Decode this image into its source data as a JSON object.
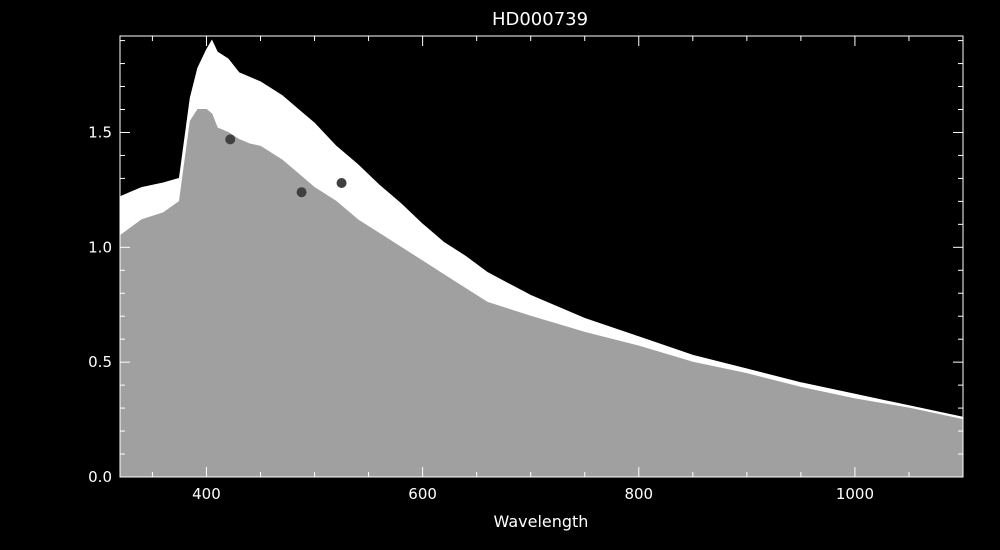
{
  "chart_data": {
    "type": "line",
    "title": "HD000739",
    "xlabel": "Wavelength",
    "ylabel": "",
    "xlim": [
      320,
      1100
    ],
    "ylim": [
      0,
      1.92
    ],
    "x_ticks": [
      400,
      600,
      800,
      1000
    ],
    "y_ticks": [
      0.0,
      0.5,
      1.0,
      1.5
    ],
    "x_tick_labels": [
      "400",
      "600",
      "800",
      "1000"
    ],
    "y_tick_labels": [
      "0.0",
      "0.5",
      "1.0",
      "1.5"
    ],
    "grid": false,
    "background": "#000000",
    "foreground": "#ffffff",
    "series": [
      {
        "color": "#ffffff",
        "x": [
          320,
          340,
          360,
          375,
          385,
          392,
          400,
          405,
          410,
          420,
          430,
          440,
          450,
          470,
          490,
          500,
          520,
          540,
          560,
          580,
          600,
          620,
          640,
          660,
          680,
          700,
          750,
          800,
          850,
          900,
          950,
          1000,
          1050,
          1100
        ],
        "y": [
          1.22,
          1.26,
          1.28,
          1.3,
          1.65,
          1.78,
          1.86,
          1.9,
          1.85,
          1.82,
          1.76,
          1.74,
          1.72,
          1.66,
          1.58,
          1.54,
          1.44,
          1.36,
          1.27,
          1.19,
          1.1,
          1.02,
          0.96,
          0.89,
          0.84,
          0.79,
          0.69,
          0.61,
          0.53,
          0.47,
          0.41,
          0.36,
          0.31,
          0.26
        ]
      },
      {
        "color": "#a0a0a0",
        "x": [
          320,
          340,
          360,
          375,
          385,
          392,
          400,
          405,
          410,
          420,
          430,
          440,
          450,
          470,
          490,
          500,
          520,
          540,
          560,
          580,
          600,
          620,
          640,
          660,
          680,
          700,
          750,
          800,
          850,
          900,
          950,
          1000,
          1050,
          1100
        ],
        "y": [
          1.05,
          1.12,
          1.15,
          1.2,
          1.55,
          1.6,
          1.6,
          1.58,
          1.52,
          1.5,
          1.47,
          1.45,
          1.44,
          1.38,
          1.3,
          1.26,
          1.2,
          1.12,
          1.06,
          1.0,
          0.94,
          0.88,
          0.82,
          0.76,
          0.73,
          0.7,
          0.63,
          0.57,
          0.5,
          0.45,
          0.39,
          0.34,
          0.3,
          0.25
        ]
      },
      {
        "type": "scatter",
        "color": "#404040",
        "x": [
          422,
          488,
          525
        ],
        "y": [
          1.47,
          1.24,
          1.28
        ]
      }
    ]
  }
}
